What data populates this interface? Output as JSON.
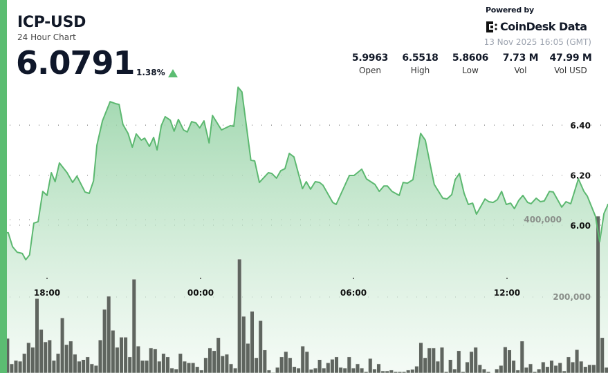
{
  "header": {
    "pair": "ICP-USD",
    "subtitle": "24 Hour Chart",
    "price": "6.0791",
    "change": "1.38%",
    "change_direction": "up",
    "powered_by": "Powered by",
    "brand": "CoinDesk Data",
    "timestamp": "13 Nov 2025 16:05 (GMT)"
  },
  "stats": [
    {
      "value": "5.9963",
      "label": "Open"
    },
    {
      "value": "6.5518",
      "label": "High"
    },
    {
      "value": "5.8606",
      "label": "Low"
    },
    {
      "value": "7.73 M",
      "label": "Vol"
    },
    {
      "value": "47.99 M",
      "label": "Vol USD"
    }
  ],
  "colors": {
    "accent": "#5cbd72",
    "line": "#5cb870",
    "volume": "#5f655f",
    "text": "#111827"
  },
  "chart_data": {
    "type": "area",
    "price_axis": {
      "ticks": [
        "6.00",
        "6.20",
        "6.40"
      ],
      "tick_values": [
        6.0,
        6.2,
        6.4
      ],
      "side": "right"
    },
    "volume_axis": {
      "ticks": [
        "200,000",
        "400,000"
      ],
      "tick_values": [
        200000,
        400000
      ],
      "side": "right"
    },
    "x_ticks": [
      "18:00",
      "00:00",
      "06:00",
      "12:00"
    ],
    "grid": "dotted horizontal",
    "price_series": {
      "time": [
        "16:29",
        "16:39",
        "16:50",
        "17:02",
        "17:10",
        "17:19",
        "17:29",
        "17:39",
        "17:50",
        "18:00",
        "18:10",
        "18:19",
        "18:29",
        "18:47",
        "19:00",
        "19:10",
        "19:29",
        "19:39",
        "19:49",
        "19:57",
        "20:10",
        "20:28",
        "20:41",
        "20:49",
        "20:58",
        "21:10",
        "21:20",
        "21:29",
        "21:41",
        "21:49",
        "22:00",
        "22:10",
        "22:18",
        "22:28",
        "22:37",
        "22:49",
        "22:58",
        "23:08",
        "23:20",
        "23:29",
        "23:39",
        "23:49",
        "23:58",
        "00:08",
        "00:20",
        "00:28",
        "00:49",
        "01:10",
        "01:18",
        "01:28",
        "01:37",
        "01:58",
        "02:07",
        "02:18",
        "02:39",
        "02:47",
        "02:58",
        "03:08",
        "03:18",
        "03:28",
        "03:39",
        "03:59",
        "04:08",
        "04:18",
        "04:29",
        "04:39",
        "04:47",
        "05:10",
        "05:18",
        "05:49",
        "06:00",
        "06:18",
        "06:29",
        "06:49",
        "06:59",
        "07:10",
        "07:18",
        "07:29",
        "07:46",
        "07:55",
        "08:05",
        "08:18",
        "08:36",
        "08:47",
        "08:59",
        "09:08",
        "09:28",
        "09:38",
        "09:49",
        "09:57",
        "10:07",
        "10:18",
        "10:28",
        "10:38",
        "10:47",
        "11:07",
        "11:16",
        "11:26",
        "11:36",
        "11:46",
        "11:57",
        "12:07",
        "12:16",
        "12:26",
        "12:36",
        "12:47",
        "12:55",
        "13:07",
        "13:17",
        "13:26",
        "13:38",
        "13:47",
        "14:07",
        "14:17",
        "14:28",
        "14:46",
        "14:59",
        "15:07",
        "15:26",
        "15:36",
        "15:46",
        "15:54"
      ],
      "price": [
        5.97,
        5.914,
        5.892,
        5.887,
        5.862,
        5.881,
        6.008,
        6.014,
        6.135,
        6.119,
        6.21,
        6.174,
        6.249,
        6.21,
        6.171,
        6.196,
        6.133,
        6.127,
        6.177,
        6.32,
        6.417,
        6.494,
        6.486,
        6.483,
        6.403,
        6.367,
        6.312,
        6.365,
        6.34,
        6.348,
        6.315,
        6.351,
        6.301,
        6.398,
        6.434,
        6.42,
        6.376,
        6.423,
        6.381,
        6.373,
        6.414,
        6.409,
        6.389,
        6.417,
        6.329,
        6.439,
        6.381,
        6.398,
        6.395,
        6.552,
        6.533,
        6.26,
        6.257,
        6.171,
        6.21,
        6.207,
        6.188,
        6.218,
        6.226,
        6.287,
        6.273,
        6.146,
        6.174,
        6.144,
        6.174,
        6.171,
        6.16,
        6.091,
        6.083,
        6.199,
        6.199,
        6.224,
        6.185,
        6.163,
        6.135,
        6.157,
        6.157,
        6.135,
        6.119,
        6.171,
        6.168,
        6.182,
        6.367,
        6.34,
        6.238,
        6.163,
        6.108,
        6.105,
        6.122,
        6.182,
        6.207,
        6.127,
        6.083,
        6.088,
        6.044,
        6.105,
        6.094,
        6.091,
        6.102,
        6.135,
        6.083,
        6.088,
        6.066,
        6.099,
        6.119,
        6.091,
        6.086,
        6.108,
        6.094,
        6.097,
        6.135,
        6.133,
        6.072,
        6.094,
        6.086,
        6.185,
        6.135,
        6.116,
        6.036,
        5.934,
        6.047,
        6.077
      ]
    },
    "volume_series": [
      93000,
      27000,
      36000,
      34000,
      54000,
      82000,
      70000,
      196000,
      116000,
      84000,
      89000,
      36000,
      54000,
      146000,
      77000,
      86000,
      52000,
      34000,
      38000,
      45000,
      27000,
      23000,
      89000,
      168000,
      202000,
      114000,
      70000,
      96000,
      96000,
      45000,
      246000,
      73000,
      36000,
      36000,
      68000,
      66000,
      34000,
      54000,
      45000,
      16000,
      14000,
      54000,
      34000,
      30000,
      30000,
      20000,
      11000,
      43000,
      68000,
      61000,
      95000,
      48000,
      52000,
      27000,
      16000,
      298000,
      150000,
      80000,
      163000,
      43000,
      139000,
      63000,
      11000,
      5000,
      18000,
      45000,
      59000,
      43000,
      20000,
      16000,
      73000,
      59000,
      13000,
      16000,
      38000,
      16000,
      30000,
      39000,
      45000,
      18000,
      16000,
      45000,
      16000,
      27000,
      16000,
      7000,
      41000,
      14000,
      27000,
      9000,
      9000,
      11000,
      7000,
      7000,
      7000,
      11000,
      13000,
      21000,
      82000,
      43000,
      68000,
      68000,
      34000,
      70000,
      7000,
      38000,
      14000,
      61000,
      7000,
      32000,
      59000,
      70000,
      25000,
      14000,
      7000,
      0,
      14000,
      23000,
      71000,
      63000,
      36000,
      11000,
      86000,
      18000,
      27000,
      7000,
      14000,
      32000,
      20000,
      36000,
      23000,
      30000,
      9000,
      45000,
      32000,
      64000,
      34000,
      20000,
      25000,
      25000,
      409000,
      95000,
      18000
    ]
  }
}
